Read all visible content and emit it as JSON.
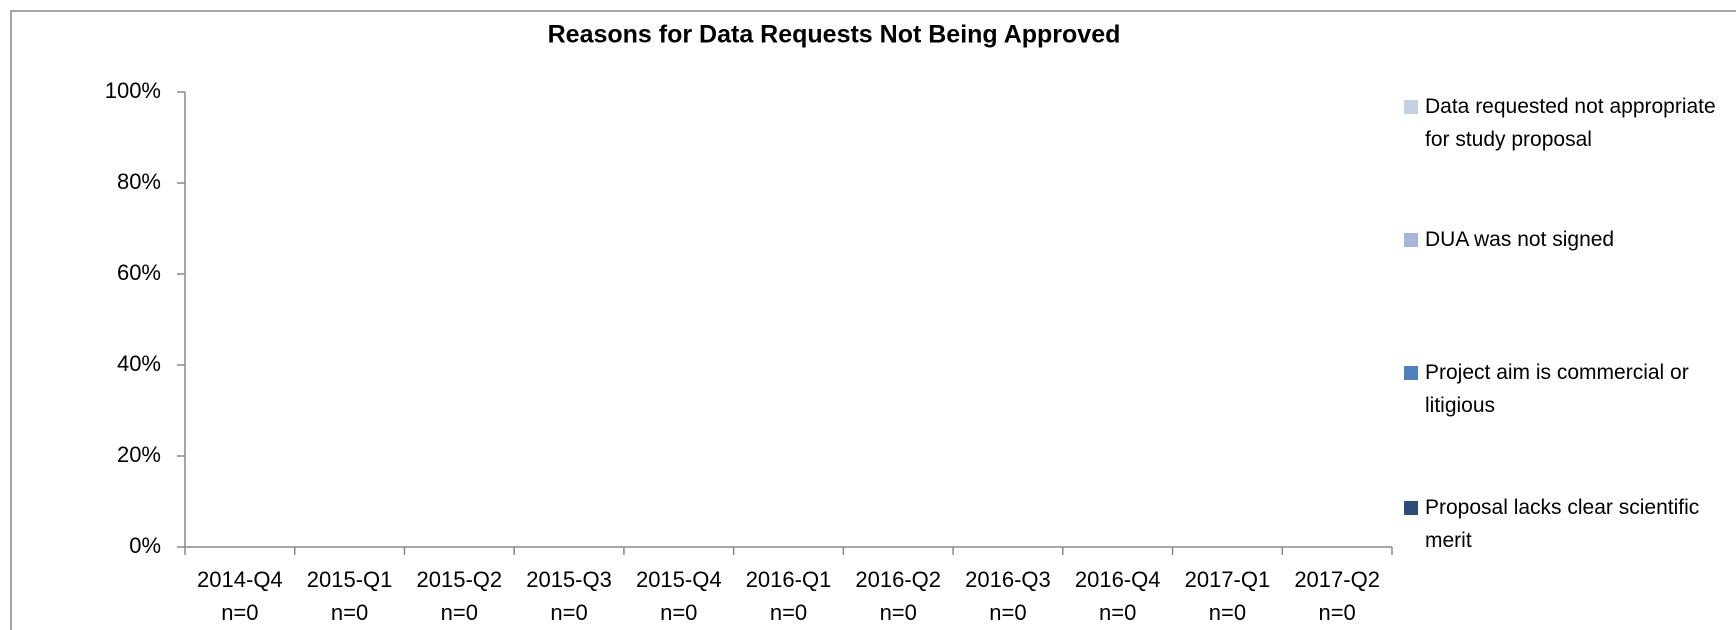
{
  "chart_data": {
    "type": "stacked_bar",
    "title": "Reasons for Data Requests Not Being Approved",
    "categories": [
      "2014-Q4",
      "2015-Q1",
      "2015-Q2",
      "2015-Q3",
      "2015-Q4",
      "2016-Q1",
      "2016-Q2",
      "2016-Q3",
      "2016-Q4",
      "2017-Q1",
      "2017-Q2"
    ],
    "category_sublabels": [
      "n=0",
      "n=0",
      "n=0",
      "n=0",
      "n=0",
      "n=0",
      "n=0",
      "n=0",
      "n=0",
      "n=0",
      "n=0"
    ],
    "series": [
      {
        "name": "Data requested not appropriate for study proposal",
        "color": "#c6d0e4",
        "values": [
          0,
          0,
          0,
          0,
          0,
          0,
          0,
          0,
          0,
          0,
          0
        ]
      },
      {
        "name": "DUA was not signed",
        "color": "#a5b6d6",
        "values": [
          0,
          0,
          0,
          0,
          0,
          0,
          0,
          0,
          0,
          0,
          0
        ]
      },
      {
        "name": "Project aim is commercial or litigious",
        "color": "#4f81bd",
        "values": [
          0,
          0,
          0,
          0,
          0,
          0,
          0,
          0,
          0,
          0,
          0
        ]
      },
      {
        "name": "Proposal lacks clear scientific merit",
        "color": "#2c4d75",
        "values": [
          0,
          0,
          0,
          0,
          0,
          0,
          0,
          0,
          0,
          0,
          0
        ]
      }
    ],
    "ylim": [
      0,
      100
    ],
    "yticks": [
      {
        "value": 0,
        "label": "0%"
      },
      {
        "value": 20,
        "label": "20%"
      },
      {
        "value": 40,
        "label": "40%"
      },
      {
        "value": 60,
        "label": "60%"
      },
      {
        "value": 80,
        "label": "80%"
      },
      {
        "value": 100,
        "label": "100%"
      }
    ],
    "legend": "right"
  }
}
